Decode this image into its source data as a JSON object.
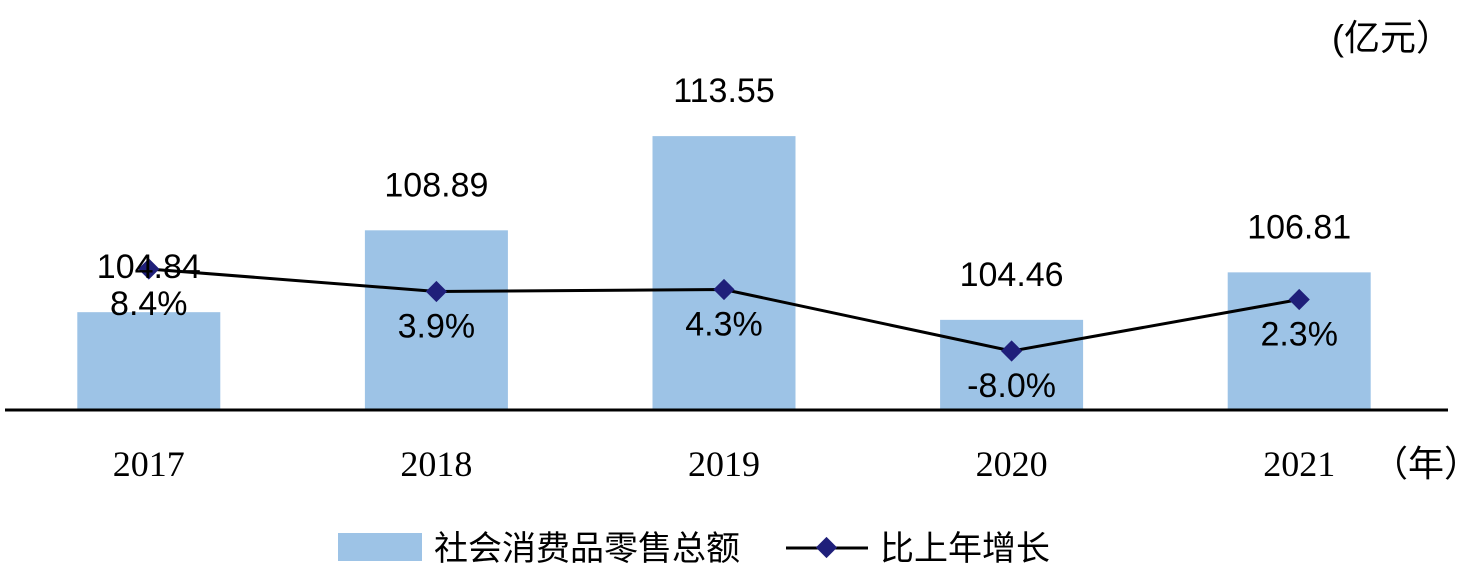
{
  "unit_y": "(亿元）",
  "unit_x": "（年）",
  "colors": {
    "bar": "#9DC3E6",
    "line": "#000000",
    "marker": "#1F1F7A",
    "axis": "#000000"
  },
  "chart_data": {
    "type": "bar",
    "categories": [
      "2017",
      "2018",
      "2019",
      "2020",
      "2021"
    ],
    "series": [
      {
        "name": "社会消费品零售总额",
        "type": "bar",
        "values": [
          104.84,
          108.89,
          113.55,
          104.46,
          106.81
        ],
        "labels": [
          "104.84",
          "108.89",
          "113.55",
          "104.46",
          "106.81"
        ]
      },
      {
        "name": "比上年增长",
        "type": "line",
        "values": [
          8.4,
          3.9,
          4.3,
          -8.0,
          2.3
        ],
        "labels": [
          "8.4%",
          "3.9%",
          "4.3%",
          "-8.0%",
          "2.3%"
        ]
      }
    ],
    "legend": "bottom-center",
    "grid": false
  }
}
